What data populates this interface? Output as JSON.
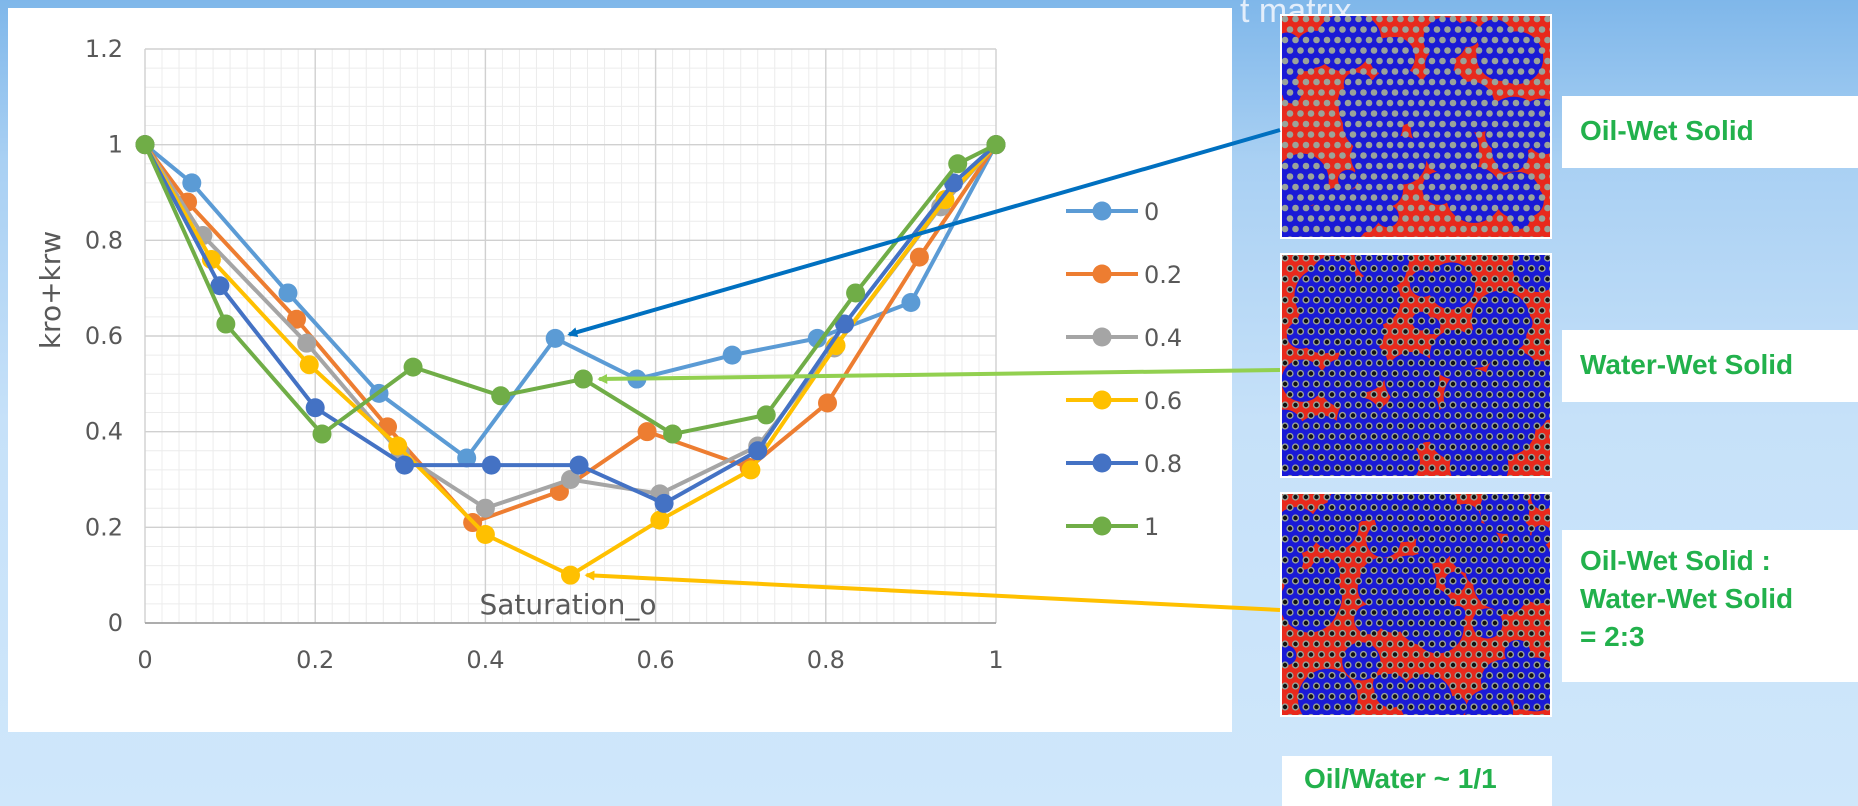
{
  "header": {
    "partial_title": "t                    matrix"
  },
  "chart_data": {
    "type": "line",
    "title": "",
    "xlabel": "Saturation_o",
    "ylabel": "kro+krw",
    "xlim": [
      0,
      1
    ],
    "ylim": [
      0,
      1.2
    ],
    "x_ticks": [
      "0",
      "0.2",
      "0.4",
      "0.6",
      "0.8",
      "1"
    ],
    "y_ticks": [
      "0",
      "0.2",
      "0.4",
      "0.6",
      "0.8",
      "1",
      "1.2"
    ],
    "grid": "major and minor",
    "legend_position": "right",
    "series": [
      {
        "name": "0",
        "color": "#5b9bd5",
        "x": [
          0,
          0.055,
          0.168,
          0.275,
          0.378,
          0.482,
          0.578,
          0.69,
          0.79,
          0.9,
          1.0
        ],
        "y": [
          1.0,
          0.92,
          0.69,
          0.48,
          0.345,
          0.595,
          0.51,
          0.56,
          0.595,
          0.67,
          1.0
        ]
      },
      {
        "name": "0.2",
        "color": "#ed7d31",
        "x": [
          0,
          0.05,
          0.178,
          0.285,
          0.385,
          0.487,
          0.59,
          0.71,
          0.802,
          0.91,
          1.0
        ],
        "y": [
          1.0,
          0.88,
          0.635,
          0.41,
          0.21,
          0.275,
          0.4,
          0.325,
          0.46,
          0.765,
          1.0
        ]
      },
      {
        "name": "0.4",
        "color": "#a5a5a5",
        "x": [
          0,
          0.068,
          0.19,
          0.3,
          0.4,
          0.5,
          0.605,
          0.72,
          0.81,
          0.935,
          1.0
        ],
        "y": [
          1.0,
          0.81,
          0.585,
          0.355,
          0.24,
          0.3,
          0.27,
          0.37,
          0.575,
          0.87,
          1.0
        ]
      },
      {
        "name": "0.6",
        "color": "#ffc000",
        "x": [
          0,
          0.078,
          0.193,
          0.297,
          0.4,
          0.5,
          0.605,
          0.712,
          0.812,
          0.94,
          1.0
        ],
        "y": [
          1.0,
          0.76,
          0.54,
          0.37,
          0.185,
          0.1,
          0.215,
          0.32,
          0.58,
          0.885,
          1.0
        ]
      },
      {
        "name": "0.8",
        "color": "#4472c4",
        "x": [
          0,
          0.088,
          0.2,
          0.305,
          0.407,
          0.51,
          0.61,
          0.72,
          0.822,
          0.95,
          1.0
        ],
        "y": [
          1.0,
          0.705,
          0.45,
          0.33,
          0.33,
          0.33,
          0.25,
          0.36,
          0.625,
          0.92,
          1.0
        ]
      },
      {
        "name": "1",
        "color": "#70ad47",
        "x": [
          0,
          0.095,
          0.208,
          0.315,
          0.418,
          0.515,
          0.62,
          0.73,
          0.835,
          0.955,
          1.0
        ],
        "y": [
          1.0,
          0.625,
          0.395,
          0.535,
          0.475,
          0.51,
          0.395,
          0.435,
          0.69,
          0.96,
          1.0
        ]
      }
    ]
  },
  "images": [
    {
      "id": "oil-wet",
      "description_icon": "simulation-oil-wet-icon",
      "colors": {
        "red": "#e8291c",
        "blue": "#1a1ad6",
        "grain": "#9aa39a"
      }
    },
    {
      "id": "water-wet",
      "description_icon": "simulation-water-wet-icon",
      "colors": {
        "red": "#e8291c",
        "blue": "#1a1ad6",
        "grain": "#111111"
      }
    },
    {
      "id": "mixed",
      "description_icon": "simulation-mixed-icon",
      "colors": {
        "red": "#e8291c",
        "blue": "#1a1ad6",
        "grain": "#111111"
      }
    }
  ],
  "labels": {
    "oil_wet": "Oil-Wet Solid",
    "water_wet": "Water-Wet Solid",
    "mixed_line1": "Oil-Wet Solid :",
    "mixed_line2": "Water-Wet Solid",
    "mixed_line3": "= 2:3",
    "ratio": "Oil/Water ~ 1/1"
  },
  "arrows": [
    {
      "color": "#0070c0",
      "target_series": "0"
    },
    {
      "color": "#92d050",
      "target_series": "1"
    },
    {
      "color": "#ffc000",
      "target_series": "0.6"
    }
  ]
}
